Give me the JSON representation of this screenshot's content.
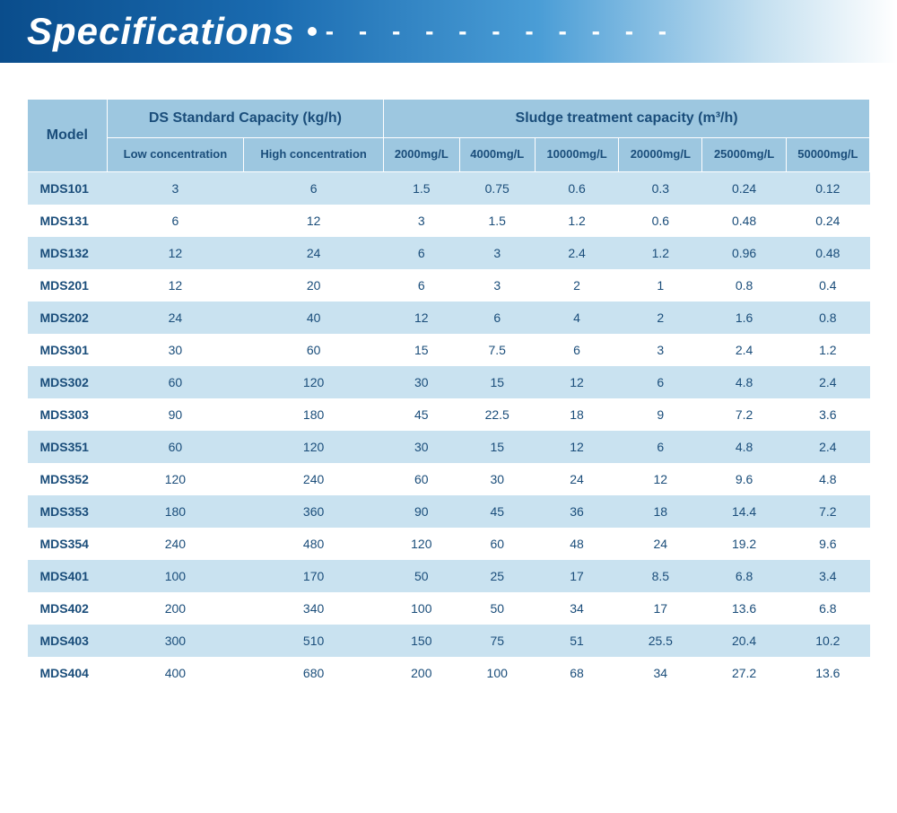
{
  "banner": {
    "title": "Specifications",
    "background_gradient": [
      "#0a4d8c",
      "#1a6bb0",
      "#4a9dd6",
      "#c5e0f0",
      "#ffffff"
    ],
    "title_color": "#ffffff",
    "title_fontsize": 42
  },
  "spec_table": {
    "type": "table",
    "header_bg": "#9dc7e0",
    "row_alt_bg": "#c9e2f0",
    "row_bg": "#ffffff",
    "text_color": "#1a4d7a",
    "columns": {
      "model_label": "Model",
      "ds_group_label": "DS Standard Capacity (kg/h)",
      "ds_low_label": "Low concentration",
      "ds_high_label": "High concentration",
      "sludge_group_label": "Sludge treatment capacity  (m³/h)",
      "sludge_sub": [
        "2000mg/L",
        "4000mg/L",
        "10000mg/L",
        "20000mg/L",
        "25000mg/L",
        "50000mg/L"
      ]
    },
    "rows": [
      {
        "model": "MDS101",
        "low": "3",
        "high": "6",
        "v": [
          "1.5",
          "0.75",
          "0.6",
          "0.3",
          "0.24",
          "0.12"
        ]
      },
      {
        "model": "MDS131",
        "low": "6",
        "high": "12",
        "v": [
          "3",
          "1.5",
          "1.2",
          "0.6",
          "0.48",
          "0.24"
        ]
      },
      {
        "model": "MDS132",
        "low": "12",
        "high": "24",
        "v": [
          "6",
          "3",
          "2.4",
          "1.2",
          "0.96",
          "0.48"
        ]
      },
      {
        "model": "MDS201",
        "low": "12",
        "high": "20",
        "v": [
          "6",
          "3",
          "2",
          "1",
          "0.8",
          "0.4"
        ]
      },
      {
        "model": "MDS202",
        "low": "24",
        "high": "40",
        "v": [
          "12",
          "6",
          "4",
          "2",
          "1.6",
          "0.8"
        ]
      },
      {
        "model": "MDS301",
        "low": "30",
        "high": "60",
        "v": [
          "15",
          "7.5",
          "6",
          "3",
          "2.4",
          "1.2"
        ]
      },
      {
        "model": "MDS302",
        "low": "60",
        "high": "120",
        "v": [
          "30",
          "15",
          "12",
          "6",
          "4.8",
          "2.4"
        ]
      },
      {
        "model": "MDS303",
        "low": "90",
        "high": "180",
        "v": [
          "45",
          "22.5",
          "18",
          "9",
          "7.2",
          "3.6"
        ]
      },
      {
        "model": "MDS351",
        "low": "60",
        "high": "120",
        "v": [
          "30",
          "15",
          "12",
          "6",
          "4.8",
          "2.4"
        ]
      },
      {
        "model": "MDS352",
        "low": "120",
        "high": "240",
        "v": [
          "60",
          "30",
          "24",
          "12",
          "9.6",
          "4.8"
        ]
      },
      {
        "model": "MDS353",
        "low": "180",
        "high": "360",
        "v": [
          "90",
          "45",
          "36",
          "18",
          "14.4",
          "7.2"
        ]
      },
      {
        "model": "MDS354",
        "low": "240",
        "high": "480",
        "v": [
          "120",
          "60",
          "48",
          "24",
          "19.2",
          "9.6"
        ]
      },
      {
        "model": "MDS401",
        "low": "100",
        "high": "170",
        "v": [
          "50",
          "25",
          "17",
          "8.5",
          "6.8",
          "3.4"
        ]
      },
      {
        "model": "MDS402",
        "low": "200",
        "high": "340",
        "v": [
          "100",
          "50",
          "34",
          "17",
          "13.6",
          "6.8"
        ]
      },
      {
        "model": "MDS403",
        "low": "300",
        "high": "510",
        "v": [
          "150",
          "75",
          "51",
          "25.5",
          "20.4",
          "10.2"
        ]
      },
      {
        "model": "MDS404",
        "low": "400",
        "high": "680",
        "v": [
          "200",
          "100",
          "68",
          "34",
          "27.2",
          "13.6"
        ]
      }
    ]
  }
}
